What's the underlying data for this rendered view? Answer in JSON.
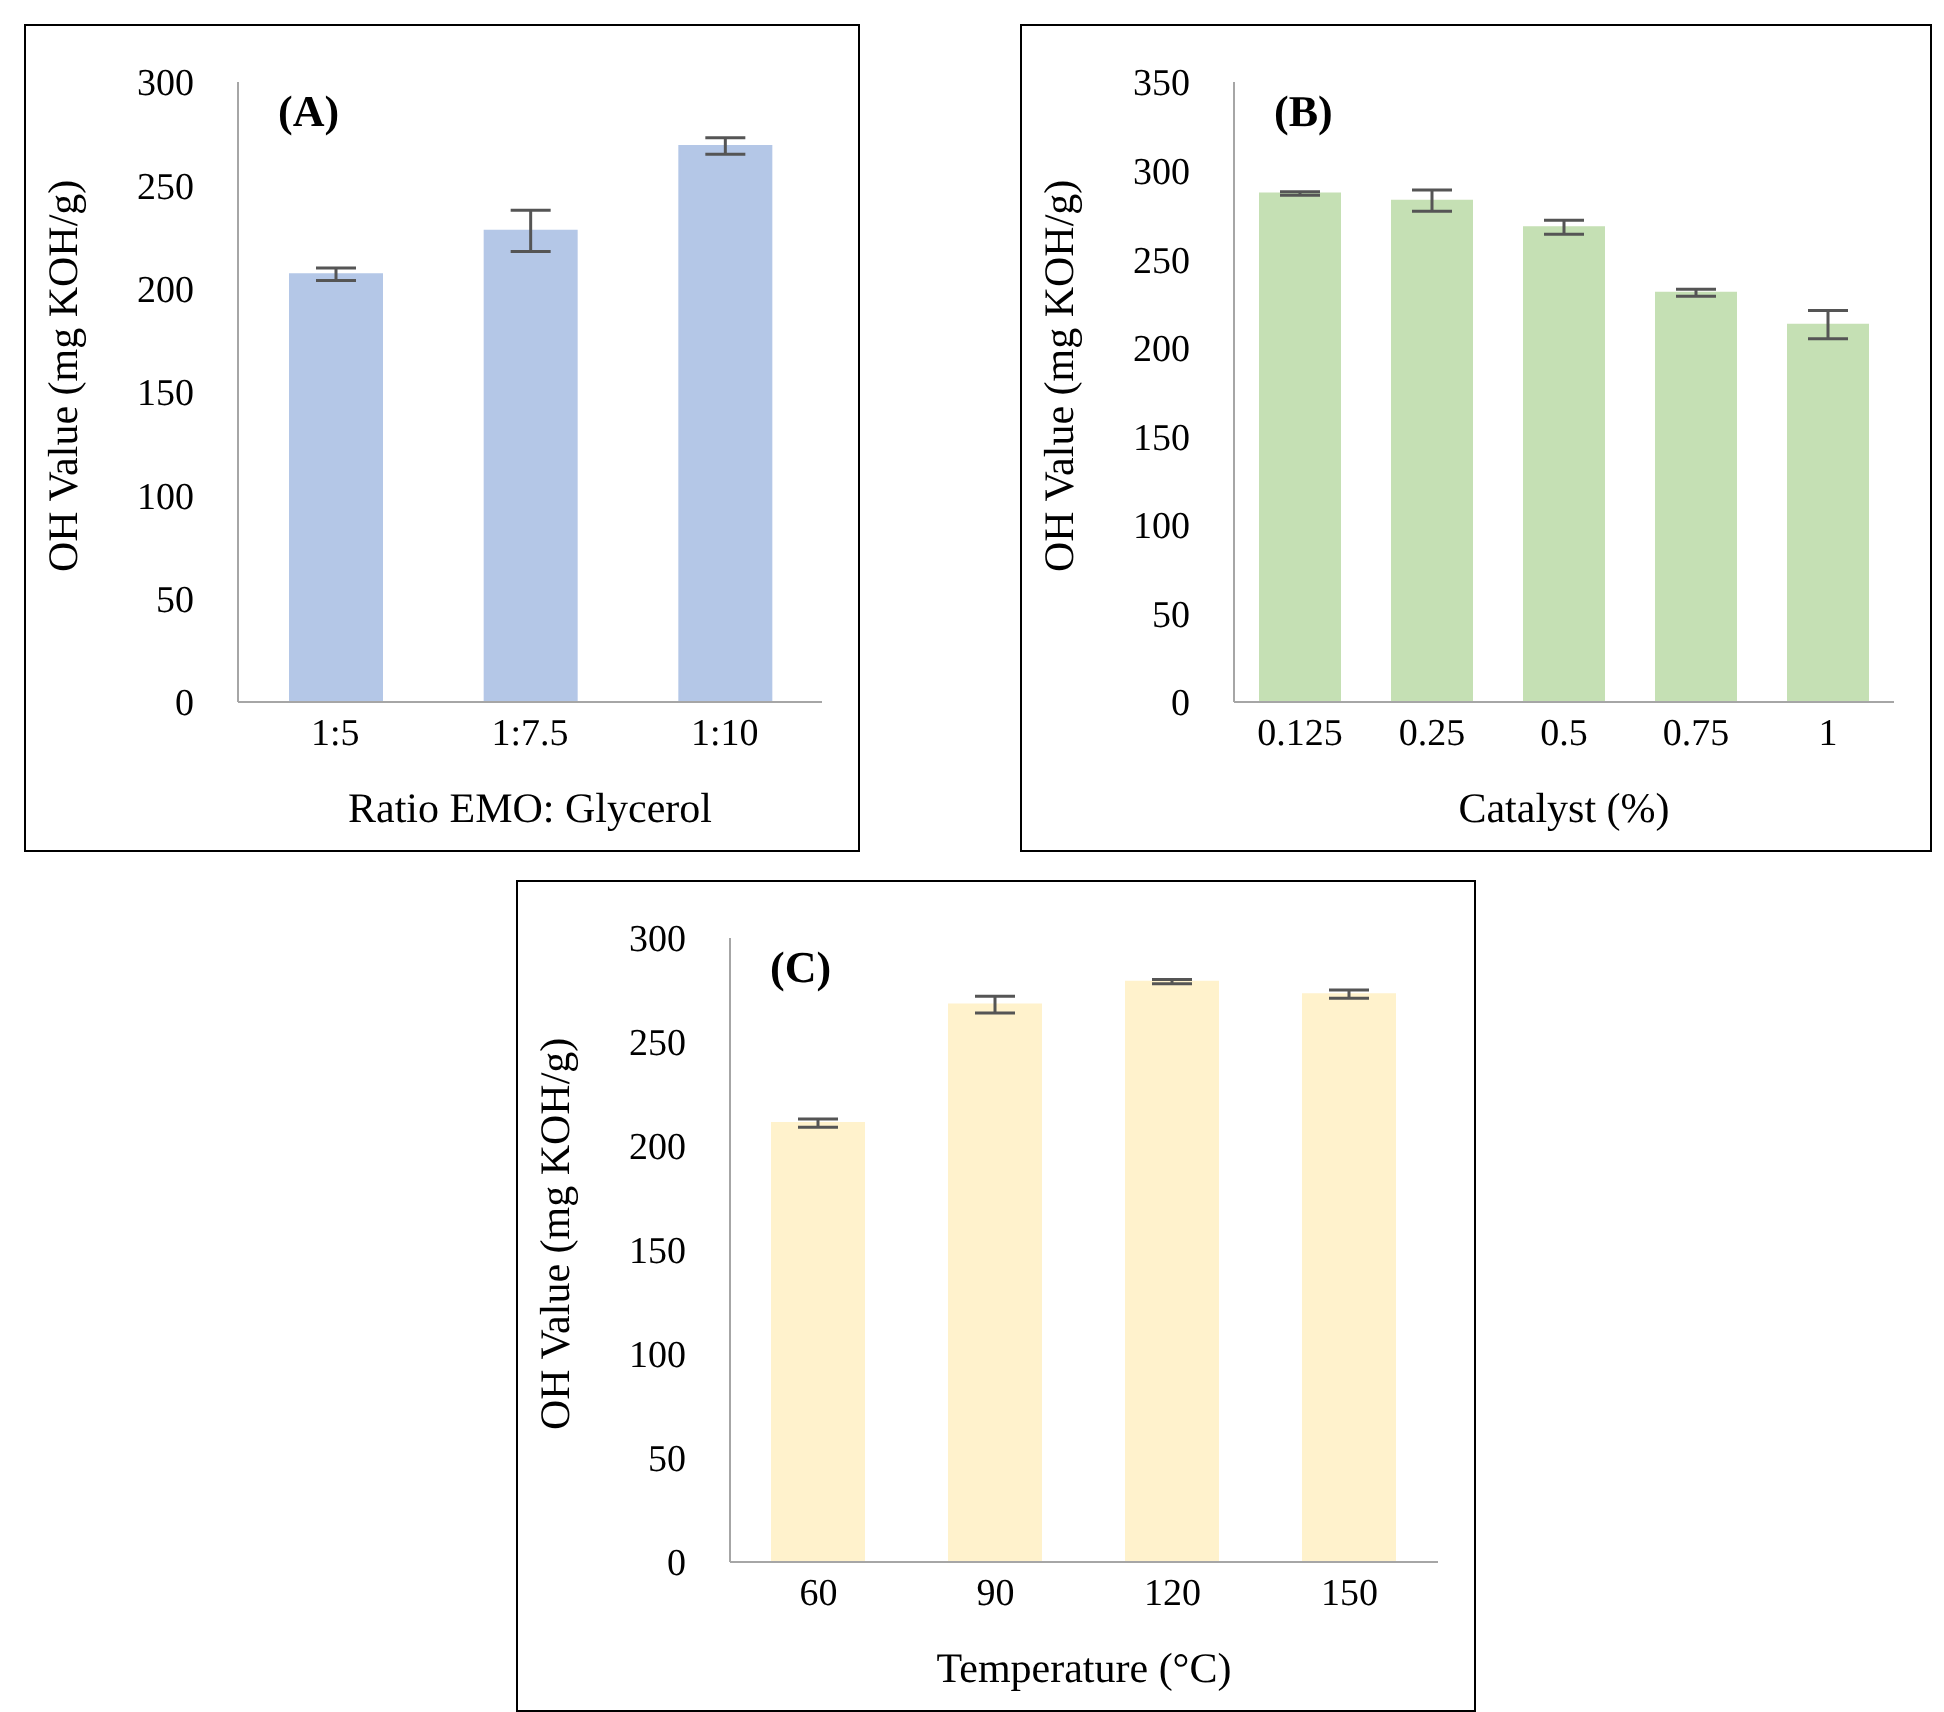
{
  "chart_data": [
    {
      "type": "bar",
      "title": "(A)",
      "xlabel": "Ratio EMO: Glycerol",
      "ylabel": "OH Value (mg KOH/g)",
      "categories": [
        "1:5",
        "1:7.5",
        "1:10"
      ],
      "values": [
        207,
        228,
        269
      ],
      "errors": [
        3,
        10,
        4
      ],
      "color": "#b4c7e7",
      "ylim": [
        0,
        300
      ],
      "yticks": [
        0,
        50,
        100,
        150,
        200,
        250,
        300
      ],
      "grid": false,
      "legend": false
    },
    {
      "type": "bar",
      "title": "(B)",
      "xlabel": "Catalyst (%)",
      "ylabel": "OH Value (mg KOH/g)",
      "categories": [
        "0.125",
        "0.25",
        "0.5",
        "0.75",
        "1"
      ],
      "values": [
        287,
        283,
        268,
        231,
        213
      ],
      "errors": [
        1,
        6,
        4,
        2,
        8
      ],
      "color": "#c5e0b4",
      "ylim": [
        0,
        350
      ],
      "yticks": [
        0,
        50,
        100,
        150,
        200,
        250,
        300,
        350
      ],
      "grid": false,
      "legend": false
    },
    {
      "type": "bar",
      "title": "(C)",
      "xlabel": "Temperature (°C)",
      "ylabel": "OH Value (mg KOH/g)",
      "categories": [
        "60",
        "90",
        "120",
        "150"
      ],
      "values": [
        211,
        268,
        279,
        273
      ],
      "errors": [
        2,
        4,
        1,
        2
      ],
      "color": "#fff2cc",
      "ylim": [
        0,
        300
      ],
      "yticks": [
        0,
        50,
        100,
        150,
        200,
        250,
        300
      ],
      "grid": false,
      "legend": false
    }
  ]
}
